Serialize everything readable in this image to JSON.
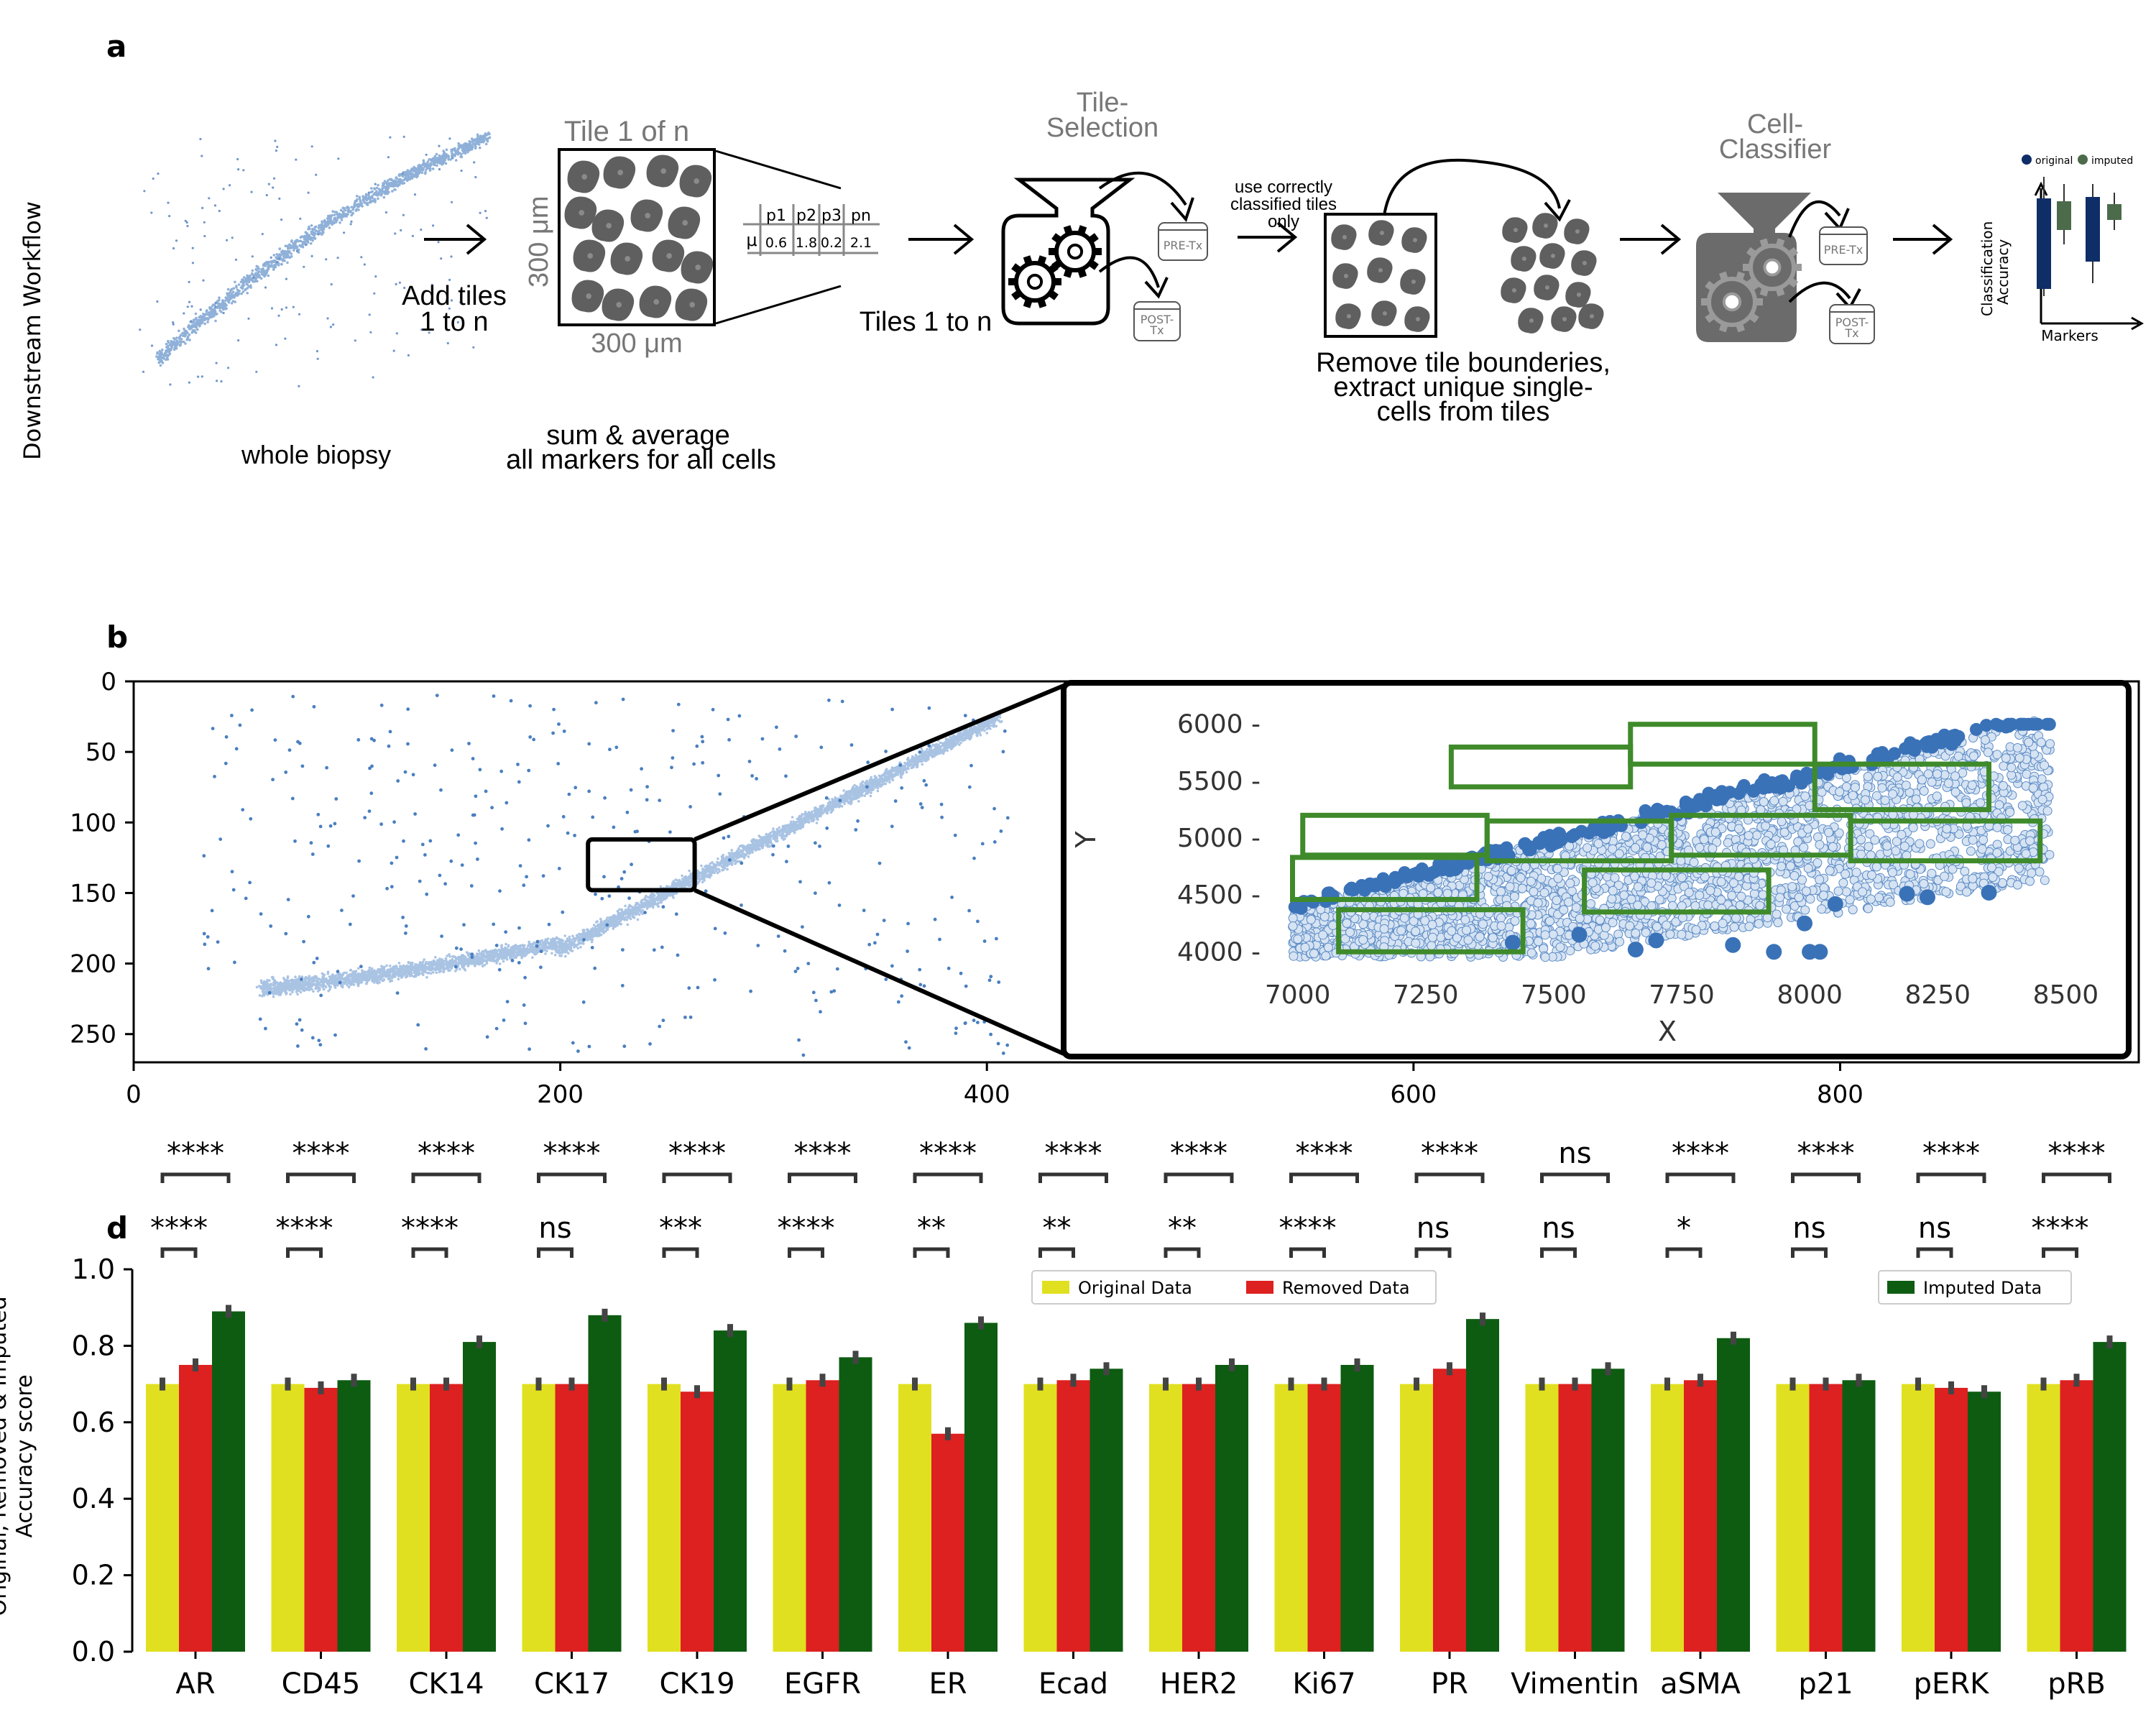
{
  "panel_labels": {
    "a": "a",
    "b": "b",
    "d": "d"
  },
  "workflow": {
    "side_label": "Downstream Workflow",
    "whole_biopsy": "whole biopsy",
    "add_tiles_1": "Add tiles",
    "add_tiles_2": "1 to n",
    "tile_title": "Tile 1 of n",
    "tile_size_v": "300 μm",
    "tile_size_h": "300 μm",
    "sum_avg_1": "sum & average",
    "sum_avg_2": "all markers for all cells",
    "table_headers": [
      "p1",
      "p2",
      "p3",
      "pn"
    ],
    "table_row_label": "μ",
    "table_values": [
      "0.6",
      "1.8",
      "0.2",
      "2.1"
    ],
    "tiles_1_to_n": "Tiles 1 to n",
    "tile_selection_1": "Tile-",
    "tile_selection_2": "Selection",
    "pre_tx": "PRE-Tx",
    "post_tx_1": "POST-",
    "post_tx_2": "Tx",
    "use_correct_1": "use correctly",
    "use_correct_2": "classified tiles",
    "use_correct_3": "only",
    "remove_1": "Remove tile bounderies,",
    "remove_2": "extract unique single-",
    "remove_3": "cells from tiles",
    "cell_classifier_1": "Cell-",
    "cell_classifier_2": "Classifier",
    "mini_legend_original": "original",
    "mini_legend_imputed": "imputed",
    "mini_ylabel_1": "Classification",
    "mini_ylabel_2": "Accuracy",
    "mini_xlabel": "Markers"
  },
  "chart_data": [
    {
      "type": "scatter",
      "panel": "b",
      "xlim": [
        0,
        940
      ],
      "ylim": [
        270,
        0
      ],
      "x_ticks": [
        0,
        200,
        400,
        600,
        800
      ],
      "y_ticks": [
        0,
        50,
        100,
        150,
        200,
        250
      ],
      "x_tick_labels": [
        "0",
        "200",
        "400",
        "600",
        "800"
      ],
      "y_tick_labels": [
        "0",
        "50",
        "100",
        "150",
        "200",
        "250"
      ],
      "point_color": "#4a7fc0",
      "selection_box": {
        "x": [
          213,
          263
        ],
        "y": [
          112,
          148
        ]
      }
    },
    {
      "type": "scatter",
      "panel": "b-inset",
      "xlabel": "X",
      "ylabel": "Y",
      "xlim": [
        6950,
        8550
      ],
      "ylim": [
        3850,
        6150
      ],
      "x_ticks": [
        7000,
        7250,
        7500,
        7750,
        8000,
        8250,
        8500
      ],
      "y_ticks": [
        4000,
        4500,
        5000,
        5500,
        6000
      ],
      "x_tick_labels": [
        "7000",
        "7250",
        "7500",
        "7750",
        "8000",
        "8250",
        "8500"
      ],
      "y_tick_labels": [
        "4000 -",
        "4500 -",
        "5000 -",
        "5500 -",
        "6000 -"
      ],
      "point_color": "#3a72b8",
      "tile_color": "#3f8a2a",
      "tiles": [
        [
          7300,
          7650,
          5450,
          5800
        ],
        [
          7650,
          8010,
          5650,
          6000
        ],
        [
          8010,
          8350,
          5250,
          5650
        ],
        [
          7010,
          7370,
          4850,
          5200
        ],
        [
          7370,
          7730,
          4800,
          5150
        ],
        [
          7730,
          8080,
          4850,
          5200
        ],
        [
          8080,
          8450,
          4800,
          5150
        ],
        [
          6990,
          7350,
          4460,
          4830
        ],
        [
          7560,
          7920,
          4350,
          4720
        ],
        [
          7080,
          7440,
          4000,
          4370
        ]
      ]
    },
    {
      "type": "bar",
      "panel": "d",
      "ylabel": "Original, Removed & Imputed\nAccuracy score",
      "ylim": [
        0.0,
        1.0
      ],
      "y_ticks": [
        0.0,
        0.2,
        0.4,
        0.6,
        0.8,
        1.0
      ],
      "y_tick_labels": [
        "0.0",
        "0.2",
        "0.4",
        "0.6",
        "0.8",
        "1.0"
      ],
      "categories": [
        "AR",
        "CD45",
        "CK14",
        "CK17",
        "CK19",
        "EGFR",
        "ER",
        "Ecad",
        "HER2",
        "Ki67",
        "PR",
        "Vimentin",
        "aSMA",
        "p21",
        "pERK",
        "pRB"
      ],
      "series": [
        {
          "name": "Original Data",
          "color": "#e0e020",
          "values": [
            0.7,
            0.7,
            0.7,
            0.7,
            0.7,
            0.7,
            0.7,
            0.7,
            0.7,
            0.7,
            0.7,
            0.7,
            0.7,
            0.7,
            0.7,
            0.7
          ]
        },
        {
          "name": "Removed Data",
          "color": "#dd2020",
          "values": [
            0.75,
            0.69,
            0.7,
            0.7,
            0.68,
            0.71,
            0.57,
            0.71,
            0.7,
            0.7,
            0.74,
            0.7,
            0.71,
            0.7,
            0.69,
            0.71
          ]
        },
        {
          "name": "Imputed Data",
          "color": "#0d5c12",
          "values": [
            0.89,
            0.71,
            0.81,
            0.88,
            0.84,
            0.77,
            0.86,
            0.74,
            0.75,
            0.75,
            0.87,
            0.74,
            0.82,
            0.71,
            0.68,
            0.81
          ]
        }
      ],
      "error_bar_color": "#444444",
      "significance_top": [
        "****",
        "****",
        "****",
        "****",
        "****",
        "****",
        "****",
        "****",
        "****",
        "****",
        "****",
        "ns",
        "****",
        "****",
        "****",
        "****"
      ],
      "significance_bottom": [
        "****",
        "****",
        "****",
        "ns",
        "***",
        "****",
        "**",
        "**",
        "**",
        "****",
        "ns",
        "ns",
        "*",
        "ns",
        "ns",
        "****"
      ],
      "legend_left": "upper-center",
      "legend_right": "upper-right"
    }
  ]
}
